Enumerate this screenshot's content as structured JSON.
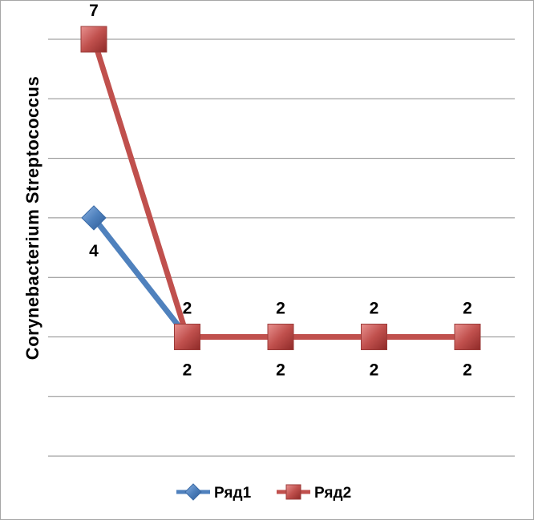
{
  "chart_data": {
    "type": "line",
    "title": "",
    "xlabel": "",
    "ylabel": "Corynebacterium  Streptococcus",
    "x": [
      1,
      2,
      3,
      4,
      5
    ],
    "ylim": [
      0,
      7
    ],
    "grid": true,
    "legend_position": "bottom",
    "series": [
      {
        "name": "Ряд1",
        "values": [
          4,
          2,
          2,
          2,
          2
        ],
        "color": "#4f81bd",
        "marker": "diamond"
      },
      {
        "name": "Ряд2",
        "values": [
          7,
          2,
          2,
          2,
          2
        ],
        "color": "#c0504d",
        "marker": "square"
      }
    ]
  }
}
